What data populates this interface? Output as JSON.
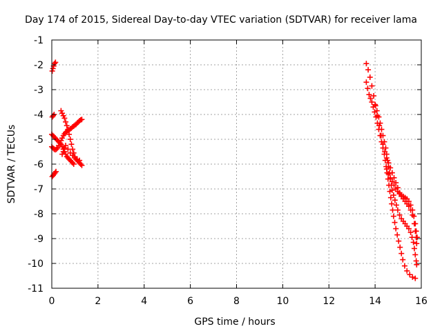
{
  "chart_data": {
    "type": "scatter",
    "title": "Day 174 of 2015, Sidereal Day-to-day VTEC variation (SDTVAR) for receiver lama",
    "xlabel": "GPS time / hours",
    "ylabel": "SDTVAR / TECUs",
    "xlim": [
      0,
      16
    ],
    "ylim": [
      -11,
      -1
    ],
    "xticks": [
      "0",
      "2",
      "4",
      "6",
      "8",
      "10",
      "12",
      "14",
      "16"
    ],
    "yticks": [
      "-1",
      "-2",
      "-3",
      "-4",
      "-5",
      "-6",
      "-7",
      "-8",
      "-9",
      "-10",
      "-11"
    ],
    "grid": true,
    "marker": "+",
    "color": "#ff0000",
    "series": [
      {
        "points": [
          [
            0.02,
            -2.25
          ],
          [
            0.05,
            -2.15
          ],
          [
            0.08,
            -2.05
          ],
          [
            0.12,
            -1.95
          ],
          [
            0.16,
            -1.9
          ],
          [
            0.02,
            -4.1
          ],
          [
            0.06,
            -4.05
          ],
          [
            0.1,
            -4.0
          ],
          [
            0.0,
            -4.8
          ],
          [
            0.05,
            -4.85
          ],
          [
            0.1,
            -4.9
          ],
          [
            0.15,
            -4.95
          ],
          [
            0.2,
            -5.0
          ],
          [
            0.25,
            -5.05
          ],
          [
            0.3,
            -5.1
          ],
          [
            0.35,
            -5.15
          ],
          [
            0.4,
            -5.2
          ],
          [
            0.45,
            -5.3
          ],
          [
            0.5,
            -5.4
          ],
          [
            0.55,
            -5.5
          ],
          [
            0.6,
            -5.6
          ],
          [
            0.65,
            -5.7
          ],
          [
            0.7,
            -5.75
          ],
          [
            0.75,
            -5.8
          ],
          [
            0.8,
            -5.85
          ],
          [
            0.85,
            -5.9
          ],
          [
            0.9,
            -5.95
          ],
          [
            0.95,
            -6.0
          ],
          [
            0.0,
            -5.3
          ],
          [
            0.05,
            -5.35
          ],
          [
            0.1,
            -5.4
          ],
          [
            0.15,
            -5.42
          ],
          [
            0.2,
            -5.4
          ],
          [
            0.25,
            -5.35
          ],
          [
            0.3,
            -5.25
          ],
          [
            0.35,
            -5.15
          ],
          [
            0.4,
            -5.05
          ],
          [
            0.45,
            -4.95
          ],
          [
            0.5,
            -4.85
          ],
          [
            0.55,
            -4.78
          ],
          [
            0.6,
            -4.72
          ],
          [
            0.65,
            -4.68
          ],
          [
            0.7,
            -4.65
          ],
          [
            0.75,
            -4.62
          ],
          [
            0.8,
            -4.58
          ],
          [
            0.85,
            -4.55
          ],
          [
            0.9,
            -4.5
          ],
          [
            0.95,
            -4.47
          ],
          [
            1.0,
            -4.43
          ],
          [
            1.05,
            -4.4
          ],
          [
            1.1,
            -4.35
          ],
          [
            1.15,
            -4.3
          ],
          [
            1.2,
            -4.25
          ],
          [
            1.25,
            -4.22
          ],
          [
            1.3,
            -4.2
          ],
          [
            0.4,
            -3.85
          ],
          [
            0.45,
            -3.95
          ],
          [
            0.5,
            -4.05
          ],
          [
            0.55,
            -4.15
          ],
          [
            0.6,
            -4.3
          ],
          [
            0.65,
            -4.45
          ],
          [
            0.7,
            -4.6
          ],
          [
            0.75,
            -4.8
          ],
          [
            0.8,
            -5.0
          ],
          [
            0.85,
            -5.2
          ],
          [
            0.9,
            -5.4
          ],
          [
            0.95,
            -5.55
          ],
          [
            1.0,
            -5.7
          ],
          [
            1.05,
            -5.8
          ],
          [
            1.1,
            -5.85
          ],
          [
            1.15,
            -5.9
          ],
          [
            1.2,
            -5.95
          ],
          [
            1.25,
            -6.0
          ],
          [
            1.3,
            -6.05
          ],
          [
            0.45,
            -5.6
          ],
          [
            0.5,
            -5.5
          ],
          [
            0.55,
            -5.35
          ],
          [
            0.6,
            -5.25
          ],
          [
            0.7,
            -5.4
          ],
          [
            0.8,
            -5.55
          ],
          [
            0.9,
            -5.65
          ],
          [
            1.0,
            -5.75
          ],
          [
            1.1,
            -5.8
          ],
          [
            1.2,
            -5.85
          ],
          [
            0.02,
            -6.5
          ],
          [
            0.06,
            -6.45
          ],
          [
            0.1,
            -6.4
          ],
          [
            0.14,
            -6.35
          ],
          [
            0.18,
            -6.3
          ],
          [
            13.62,
            -1.95
          ],
          [
            13.7,
            -2.2
          ],
          [
            13.78,
            -2.5
          ],
          [
            13.86,
            -2.85
          ],
          [
            13.94,
            -3.25
          ],
          [
            14.02,
            -3.65
          ],
          [
            14.1,
            -4.05
          ],
          [
            14.18,
            -4.45
          ],
          [
            14.26,
            -4.85
          ],
          [
            14.34,
            -5.2
          ],
          [
            14.42,
            -5.5
          ],
          [
            14.5,
            -5.75
          ],
          [
            14.58,
            -5.95
          ],
          [
            14.66,
            -6.15
          ],
          [
            14.74,
            -6.35
          ],
          [
            14.82,
            -6.55
          ],
          [
            14.9,
            -6.75
          ],
          [
            14.98,
            -6.95
          ],
          [
            15.06,
            -7.15
          ],
          [
            15.14,
            -7.3
          ],
          [
            15.22,
            -7.4
          ],
          [
            15.3,
            -7.5
          ],
          [
            15.38,
            -7.6
          ],
          [
            15.46,
            -7.7
          ],
          [
            15.54,
            -7.85
          ],
          [
            15.62,
            -8.05
          ],
          [
            15.7,
            -8.4
          ],
          [
            15.74,
            -8.7
          ],
          [
            15.78,
            -8.95
          ],
          [
            15.8,
            -9.2
          ],
          [
            13.62,
            -2.7
          ],
          [
            13.68,
            -2.95
          ],
          [
            13.74,
            -3.2
          ],
          [
            13.8,
            -3.35
          ],
          [
            13.86,
            -3.5
          ],
          [
            13.92,
            -3.7
          ],
          [
            13.98,
            -3.9
          ],
          [
            14.04,
            -4.1
          ],
          [
            14.1,
            -4.35
          ],
          [
            14.16,
            -4.6
          ],
          [
            14.22,
            -4.85
          ],
          [
            14.28,
            -5.1
          ],
          [
            14.34,
            -5.35
          ],
          [
            14.4,
            -5.6
          ],
          [
            14.44,
            -5.85
          ],
          [
            14.48,
            -6.1
          ],
          [
            14.52,
            -6.35
          ],
          [
            14.56,
            -6.6
          ],
          [
            14.6,
            -6.85
          ],
          [
            14.64,
            -7.1
          ],
          [
            14.68,
            -7.35
          ],
          [
            14.72,
            -7.6
          ],
          [
            14.76,
            -7.85
          ],
          [
            14.8,
            -8.1
          ],
          [
            14.85,
            -8.35
          ],
          [
            14.9,
            -8.6
          ],
          [
            14.96,
            -8.85
          ],
          [
            15.02,
            -9.1
          ],
          [
            15.08,
            -9.35
          ],
          [
            15.14,
            -9.6
          ],
          [
            15.2,
            -9.85
          ],
          [
            15.28,
            -10.1
          ],
          [
            15.38,
            -10.3
          ],
          [
            15.5,
            -10.45
          ],
          [
            15.62,
            -10.55
          ],
          [
            15.74,
            -10.6
          ],
          [
            14.0,
            -3.6
          ],
          [
            14.08,
            -3.85
          ],
          [
            14.16,
            -4.1
          ],
          [
            14.22,
            -4.35
          ],
          [
            14.28,
            -4.6
          ],
          [
            14.34,
            -4.85
          ],
          [
            14.4,
            -5.1
          ],
          [
            14.46,
            -5.35
          ],
          [
            14.5,
            -5.6
          ],
          [
            14.54,
            -5.85
          ],
          [
            14.58,
            -6.1
          ],
          [
            14.62,
            -6.35
          ],
          [
            14.66,
            -6.6
          ],
          [
            14.7,
            -6.85
          ],
          [
            14.74,
            -7.05
          ],
          [
            14.8,
            -7.25
          ],
          [
            14.86,
            -7.45
          ],
          [
            14.92,
            -7.65
          ],
          [
            14.98,
            -7.85
          ],
          [
            15.06,
            -8.05
          ],
          [
            15.14,
            -8.2
          ],
          [
            15.22,
            -8.3
          ],
          [
            15.3,
            -8.4
          ],
          [
            15.38,
            -8.5
          ],
          [
            15.46,
            -8.6
          ],
          [
            15.54,
            -8.75
          ],
          [
            15.6,
            -8.95
          ],
          [
            15.66,
            -9.15
          ],
          [
            15.7,
            -9.4
          ],
          [
            15.74,
            -9.65
          ],
          [
            15.78,
            -9.9
          ],
          [
            15.8,
            -10.05
          ],
          [
            14.5,
            -6.2
          ],
          [
            14.58,
            -6.4
          ],
          [
            14.66,
            -6.55
          ],
          [
            14.74,
            -6.7
          ],
          [
            14.82,
            -6.85
          ],
          [
            14.9,
            -7.0
          ],
          [
            14.98,
            -7.1
          ],
          [
            15.06,
            -7.2
          ],
          [
            15.14,
            -7.25
          ],
          [
            15.22,
            -7.3
          ],
          [
            15.3,
            -7.35
          ],
          [
            15.38,
            -7.4
          ],
          [
            15.46,
            -7.5
          ],
          [
            15.54,
            -7.65
          ],
          [
            15.62,
            -7.85
          ],
          [
            15.68,
            -8.1
          ],
          [
            15.74,
            -8.4
          ],
          [
            15.78,
            -8.7
          ],
          [
            15.82,
            -8.95
          ]
        ]
      }
    ]
  }
}
